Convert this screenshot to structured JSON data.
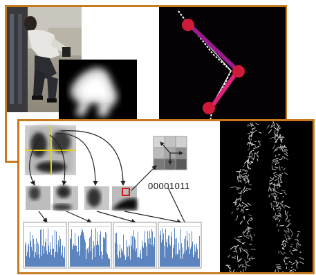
{
  "code": {
    "binary": "00001011"
  },
  "colors": {
    "frame": "#c87a1e",
    "histogram": "#4a78b8",
    "skeleton_line": "#e0217a",
    "joint": "#d01a3a"
  },
  "icons": [
    "person-photo",
    "depth-silhouette",
    "skeleton-overlay",
    "edge-map"
  ]
}
